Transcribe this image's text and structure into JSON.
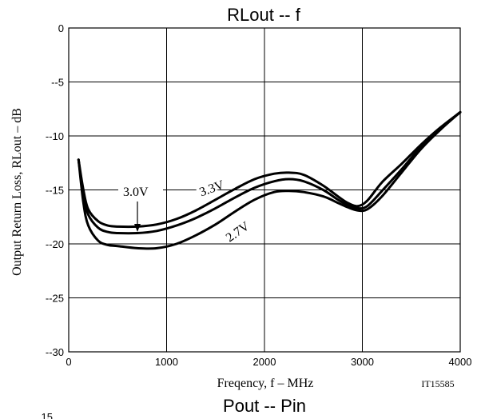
{
  "chart_data": {
    "type": "line",
    "title": "RLout  --  f",
    "xlabel": "Freqency, f  –  MHz",
    "ylabel": "Output Return Loss, RLout   –  dB",
    "xlim": [
      0,
      4000
    ],
    "ylim": [
      -30,
      0
    ],
    "x_ticks": [
      "0",
      "1000",
      "2000",
      "3000",
      "4000"
    ],
    "x_tick_values": [
      0,
      1000,
      2000,
      3000,
      4000
    ],
    "y_ticks": [
      "0",
      "--5",
      "--10",
      "--15",
      "--20",
      "--25",
      "--30"
    ],
    "y_tick_values": [
      0,
      -5,
      -10,
      -15,
      -20,
      -25,
      -30
    ],
    "grid": true,
    "series": [
      {
        "name": "3.3V",
        "x": [
          100,
          150,
          200,
          300,
          400,
          500,
          700,
          900,
          1100,
          1300,
          1500,
          1700,
          1900,
          2100,
          2250,
          2400,
          2600,
          2750,
          2850,
          2950,
          3050,
          3200,
          3400,
          3600,
          3800,
          4000
        ],
        "y": [
          -12.2,
          -15.0,
          -16.8,
          -17.9,
          -18.3,
          -18.4,
          -18.4,
          -18.2,
          -17.7,
          -16.9,
          -15.9,
          -14.9,
          -14.0,
          -13.5,
          -13.4,
          -13.6,
          -14.6,
          -15.6,
          -16.2,
          -16.5,
          -16.0,
          -14.3,
          -12.6,
          -10.8,
          -9.2,
          -7.8
        ]
      },
      {
        "name": "3.0V",
        "x": [
          100,
          150,
          200,
          300,
          400,
          500,
          700,
          900,
          1100,
          1300,
          1500,
          1700,
          1900,
          2100,
          2250,
          2400,
          2600,
          2750,
          2850,
          2950,
          3050,
          3200,
          3400,
          3600,
          3800,
          4000
        ],
        "y": [
          -12.2,
          -15.5,
          -17.3,
          -18.5,
          -18.9,
          -19.0,
          -19.0,
          -18.8,
          -18.3,
          -17.6,
          -16.7,
          -15.7,
          -14.8,
          -14.2,
          -14.0,
          -14.2,
          -15.0,
          -15.9,
          -16.4,
          -16.7,
          -16.5,
          -15.1,
          -13.1,
          -11.0,
          -9.3,
          -7.8
        ]
      },
      {
        "name": "2.7V",
        "x": [
          100,
          150,
          200,
          300,
          400,
          500,
          700,
          900,
          1100,
          1300,
          1500,
          1700,
          1900,
          2100,
          2250,
          2400,
          2600,
          2750,
          2850,
          2950,
          3050,
          3200,
          3400,
          3600,
          3800,
          4000
        ],
        "y": [
          -12.2,
          -16.2,
          -18.3,
          -19.7,
          -20.1,
          -20.2,
          -20.4,
          -20.4,
          -20.0,
          -19.2,
          -18.2,
          -17.0,
          -15.9,
          -15.2,
          -15.1,
          -15.2,
          -15.6,
          -16.2,
          -16.6,
          -16.9,
          -16.8,
          -15.6,
          -13.4,
          -11.2,
          -9.4,
          -7.8
        ]
      }
    ],
    "annotations": [
      "3.3V",
      "3.0V",
      "2.7V"
    ],
    "figure_code": "IT15585",
    "next_chart_title": "Pout  --  Pin",
    "next_chart_tick": "15"
  }
}
